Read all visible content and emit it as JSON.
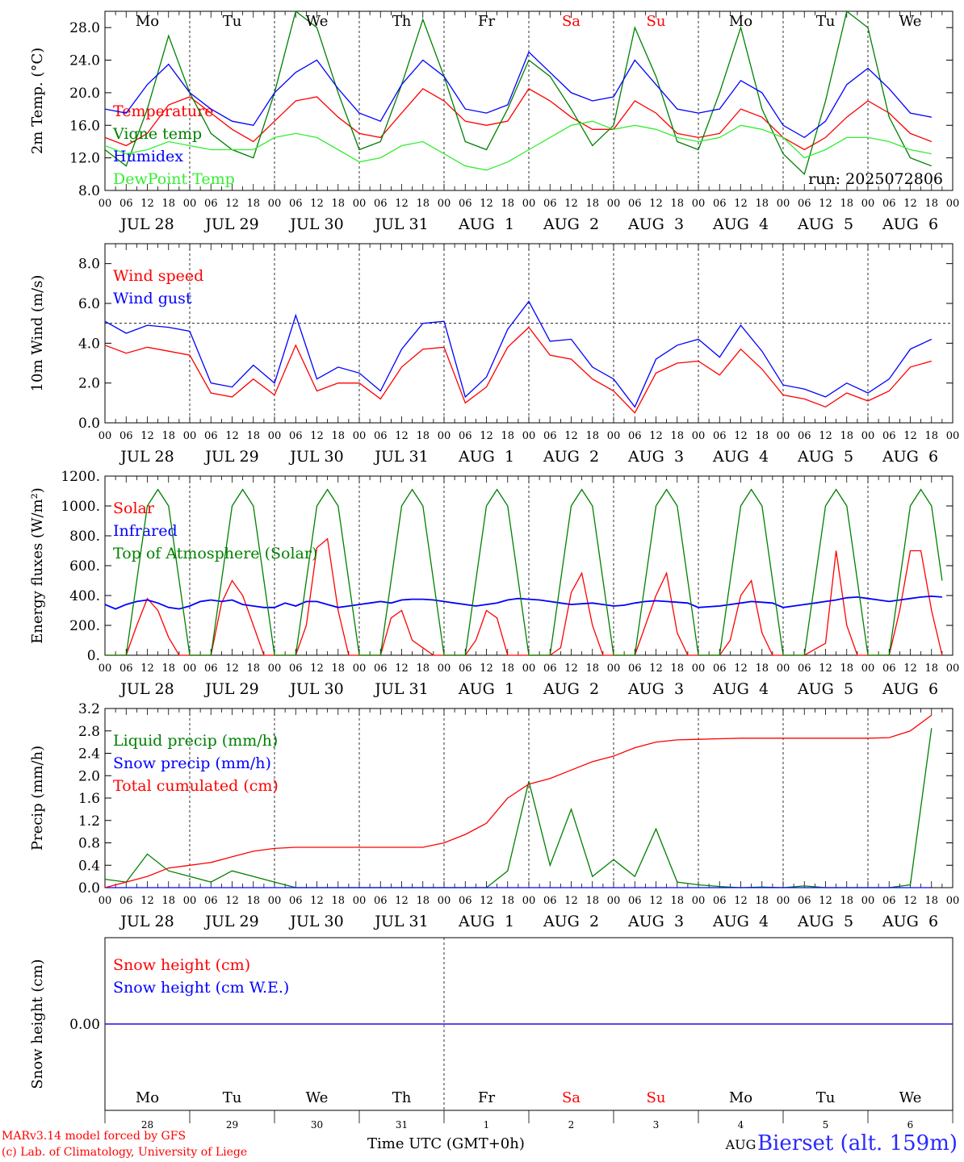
{
  "chart_data": [
    {
      "type": "line",
      "ylabel": "2m Temp. (°C)",
      "ylim": [
        8,
        30
      ],
      "yticks": [
        "8.0",
        "12.0",
        "16.0",
        "20.0",
        "24.0",
        "28.0"
      ],
      "run_label": "run: 2025072806",
      "x_hours": [
        0,
        6,
        12,
        18,
        24,
        30,
        36,
        42,
        48,
        54,
        60,
        66,
        72,
        78,
        84,
        90,
        96,
        102,
        108,
        114,
        120,
        126,
        132,
        138,
        144,
        150,
        156,
        162,
        168,
        174,
        180,
        186,
        192,
        198,
        204,
        210,
        216,
        222,
        228,
        234
      ],
      "series": [
        {
          "name": "Temperature",
          "color": "#ff0000",
          "values": [
            14.5,
            13.5,
            15,
            18.5,
            19.5,
            17.5,
            15.5,
            14,
            16.5,
            19,
            19.5,
            17,
            15,
            14.5,
            17.5,
            20.5,
            19,
            16.5,
            16,
            16.5,
            20.5,
            19,
            17,
            15.5,
            15.5,
            19,
            17.5,
            15,
            14.5,
            15,
            18,
            17,
            14.5,
            13,
            14.5,
            17,
            19,
            17.5,
            15,
            14
          ]
        },
        {
          "name": "Vigne temp",
          "color": "#008000",
          "values": [
            13,
            11,
            18,
            27,
            20,
            15,
            13,
            12,
            20,
            30,
            28,
            20,
            13,
            14,
            21,
            29,
            22,
            14,
            13,
            18,
            24,
            22,
            18,
            13.5,
            16,
            28,
            22,
            14,
            13,
            20,
            28,
            18,
            12.5,
            10,
            19,
            31,
            28,
            17,
            12,
            11
          ]
        },
        {
          "name": "Humidex",
          "color": "#0000ff",
          "values": [
            18,
            17.5,
            21,
            23.5,
            20,
            18,
            16.5,
            16,
            20,
            22.5,
            24,
            20.5,
            17.5,
            16.5,
            21,
            24,
            22,
            18,
            17.5,
            18.5,
            25,
            22.5,
            20,
            19,
            19.5,
            24,
            21,
            18,
            17.5,
            18,
            21.5,
            20,
            16,
            14.5,
            16.5,
            21,
            23,
            20.5,
            17.5,
            17
          ]
        },
        {
          "name": "DewPoint Temp",
          "color": "#33ee33",
          "values": [
            13.5,
            12.5,
            13,
            14,
            13.5,
            13,
            13,
            13,
            14.5,
            15,
            14.5,
            13,
            11.5,
            12,
            13.5,
            14,
            12.5,
            11,
            10.5,
            11.5,
            13,
            14.5,
            16,
            16.5,
            15.5,
            16,
            15.5,
            14.5,
            14,
            14.5,
            16,
            15.5,
            14.5,
            12,
            13,
            14.5,
            14.5,
            14,
            13,
            12.5
          ]
        }
      ]
    },
    {
      "type": "line",
      "ylabel": "10m Wind (m/s)",
      "ylim": [
        0,
        9
      ],
      "yticks": [
        "0.0",
        "2.0",
        "4.0",
        "6.0",
        "8.0"
      ],
      "x_hours": [
        0,
        6,
        12,
        18,
        24,
        30,
        36,
        42,
        48,
        54,
        60,
        66,
        72,
        78,
        84,
        90,
        96,
        102,
        108,
        114,
        120,
        126,
        132,
        138,
        144,
        150,
        156,
        162,
        168,
        174,
        180,
        186,
        192,
        198,
        204,
        210,
        216,
        222,
        228,
        234
      ],
      "series": [
        {
          "name": "Wind speed",
          "color": "#ff0000",
          "values": [
            3.9,
            3.5,
            3.8,
            3.6,
            3.4,
            1.5,
            1.3,
            2.2,
            1.4,
            3.9,
            1.6,
            2,
            2,
            1.2,
            2.8,
            3.7,
            3.8,
            1,
            1.8,
            3.8,
            4.8,
            3.4,
            3.2,
            2.2,
            1.6,
            0.5,
            2.5,
            3,
            3.1,
            2.4,
            3.7,
            2.7,
            1.4,
            1.2,
            0.8,
            1.5,
            1.1,
            1.6,
            2.8,
            3.1
          ]
        },
        {
          "name": "Wind gust",
          "color": "#0000ff",
          "values": [
            5.1,
            4.5,
            4.9,
            4.8,
            4.6,
            2,
            1.8,
            2.9,
            2,
            5.4,
            2.2,
            2.8,
            2.5,
            1.6,
            3.7,
            5,
            5.1,
            1.3,
            2.3,
            4.7,
            6.1,
            4.1,
            4.2,
            2.8,
            2.2,
            0.8,
            3.2,
            3.9,
            4.2,
            3.3,
            4.9,
            3.6,
            1.9,
            1.7,
            1.3,
            2,
            1.5,
            2.2,
            3.7,
            4.2
          ]
        }
      ],
      "reference_line": 5
    },
    {
      "type": "line",
      "ylabel": "Energy fluxes (W/m²)",
      "ylim": [
        0,
        1200
      ],
      "yticks": [
        "0.",
        "200.",
        "400.",
        "600.",
        "800.",
        "1000.",
        "1200."
      ],
      "x_hours": [
        0,
        3,
        6,
        9,
        12,
        15,
        18,
        21,
        24,
        27,
        30,
        33,
        36,
        39,
        42,
        45,
        48,
        51,
        54,
        57,
        60,
        63,
        66,
        69,
        72,
        75,
        78,
        81,
        84,
        87,
        90,
        93,
        96,
        99,
        102,
        105,
        108,
        111,
        114,
        117,
        120,
        123,
        126,
        129,
        132,
        135,
        138,
        141,
        144,
        147,
        150,
        153,
        156,
        159,
        162,
        165,
        168,
        171,
        174,
        177,
        180,
        183,
        186,
        189,
        192,
        195,
        198,
        201,
        204,
        207,
        210,
        213,
        216,
        219,
        222,
        225,
        228,
        231,
        234,
        237
      ],
      "series": [
        {
          "name": "Solar",
          "color": "#ff0000",
          "values": [
            0,
            0,
            0,
            200,
            380,
            300,
            120,
            0,
            0,
            0,
            0,
            350,
            500,
            400,
            200,
            0,
            0,
            0,
            0,
            200,
            720,
            780,
            300,
            0,
            0,
            0,
            0,
            250,
            300,
            100,
            50,
            0,
            0,
            0,
            0,
            100,
            300,
            250,
            0,
            0,
            0,
            0,
            0,
            50,
            420,
            550,
            200,
            0,
            0,
            0,
            0,
            200,
            400,
            550,
            150,
            0,
            0,
            0,
            0,
            100,
            400,
            500,
            150,
            0,
            0,
            0,
            0,
            40,
            80,
            700,
            200,
            0,
            0,
            0,
            0,
            300,
            700,
            700,
            300,
            0
          ]
        },
        {
          "name": "Infrared",
          "color": "#0000ff",
          "values": [
            340,
            310,
            340,
            360,
            370,
            350,
            320,
            310,
            330,
            360,
            370,
            360,
            370,
            340,
            330,
            320,
            320,
            350,
            330,
            360,
            360,
            340,
            320,
            330,
            340,
            350,
            360,
            350,
            370,
            375,
            375,
            370,
            360,
            350,
            340,
            330,
            340,
            350,
            370,
            380,
            375,
            370,
            360,
            350,
            340,
            345,
            350,
            340,
            330,
            335,
            350,
            360,
            365,
            360,
            355,
            350,
            320,
            325,
            330,
            340,
            350,
            360,
            355,
            350,
            320,
            330,
            340,
            350,
            360,
            370,
            385,
            390,
            380,
            370,
            360,
            370,
            380,
            390,
            395,
            390
          ]
        },
        {
          "name": "Top of Atmosphere (Solar)",
          "color": "#008000",
          "values": [
            0,
            0,
            0,
            500,
            1000,
            1110,
            1000,
            500,
            0,
            0,
            0,
            500,
            1000,
            1110,
            1000,
            500,
            0,
            0,
            0,
            500,
            1000,
            1110,
            1000,
            500,
            0,
            0,
            0,
            500,
            1000,
            1110,
            1000,
            500,
            0,
            0,
            0,
            500,
            1000,
            1110,
            1000,
            500,
            0,
            0,
            0,
            500,
            1000,
            1110,
            1000,
            500,
            0,
            0,
            0,
            500,
            1000,
            1110,
            1000,
            500,
            0,
            0,
            0,
            500,
            1000,
            1110,
            1000,
            500,
            0,
            0,
            0,
            500,
            1000,
            1110,
            1000,
            500,
            0,
            0,
            0,
            500,
            1000,
            1110,
            1000,
            500
          ]
        }
      ]
    },
    {
      "type": "line",
      "ylabel": "Precip (mm/h)",
      "ylim": [
        0,
        3.2
      ],
      "yticks": [
        "0.0",
        "0.4",
        "0.8",
        "1.2",
        "1.6",
        "2.0",
        "2.4",
        "2.8",
        "3.2"
      ],
      "x_hours": [
        0,
        6,
        12,
        18,
        24,
        30,
        36,
        42,
        48,
        54,
        60,
        66,
        72,
        78,
        84,
        90,
        96,
        102,
        108,
        114,
        120,
        126,
        132,
        138,
        144,
        150,
        156,
        162,
        168,
        174,
        180,
        186,
        192,
        198,
        204,
        210,
        216,
        222,
        228,
        234
      ],
      "series": [
        {
          "name": "Liquid precip (mm/h)",
          "color": "#008000",
          "values": [
            0.15,
            0.1,
            0.6,
            0.3,
            0.2,
            0.1,
            0.3,
            0.2,
            0.1,
            0,
            0,
            0,
            0,
            0,
            0,
            0,
            0,
            0,
            0,
            0.3,
            1.9,
            0.4,
            1.4,
            0.2,
            0.5,
            0.2,
            1.05,
            0.1,
            0.05,
            0.02,
            0,
            0.01,
            0,
            0.03,
            0,
            0,
            0,
            0,
            0.05,
            2.85
          ]
        },
        {
          "name": "Snow precip (mm/h)",
          "color": "#0000ff",
          "values": [
            0,
            0,
            0,
            0,
            0,
            0,
            0,
            0,
            0,
            0,
            0,
            0,
            0,
            0,
            0,
            0,
            0,
            0,
            0,
            0,
            0,
            0,
            0,
            0,
            0,
            0,
            0,
            0,
            0,
            0,
            0,
            0,
            0,
            0,
            0,
            0,
            0,
            0,
            0,
            0
          ]
        },
        {
          "name": "Total cumulated (cm)",
          "color": "#ff0000",
          "values": [
            0,
            0.1,
            0.2,
            0.35,
            0.4,
            0.45,
            0.55,
            0.65,
            0.7,
            0.72,
            0.72,
            0.72,
            0.72,
            0.72,
            0.72,
            0.72,
            0.8,
            0.95,
            1.15,
            1.6,
            1.85,
            1.95,
            2.1,
            2.25,
            2.35,
            2.5,
            2.6,
            2.64,
            2.65,
            2.66,
            2.67,
            2.67,
            2.67,
            2.67,
            2.67,
            2.67,
            2.67,
            2.68,
            2.8,
            3.08
          ]
        }
      ]
    },
    {
      "type": "line",
      "ylabel": "Snow height (cm)",
      "ylim": [
        -1,
        1
      ],
      "yticks": [
        "0.00"
      ],
      "x_hours": [
        0,
        240
      ],
      "series": [
        {
          "name": "Snow height (cm)",
          "color": "#ff0000",
          "values": [
            0,
            0
          ]
        },
        {
          "name": "Snow height (cm W.E.)",
          "color": "#0000ff",
          "values": [
            0,
            0
          ]
        }
      ]
    }
  ],
  "days": [
    {
      "dow": "Mo",
      "date": "JUL 28",
      "num": "28",
      "color": "#000000"
    },
    {
      "dow": "Tu",
      "date": "JUL 29",
      "num": "29",
      "color": "#000000"
    },
    {
      "dow": "We",
      "date": "JUL 30",
      "num": "30",
      "color": "#000000"
    },
    {
      "dow": "Th",
      "date": "JUL 31",
      "num": "31",
      "color": "#000000"
    },
    {
      "dow": "Fr",
      "date": "AUG  1",
      "num": "1",
      "color": "#000000"
    },
    {
      "dow": "Sa",
      "date": "AUG  2",
      "num": "2",
      "color": "#ff0000"
    },
    {
      "dow": "Su",
      "date": "AUG  3",
      "num": "3",
      "color": "#ff0000"
    },
    {
      "dow": "Mo",
      "date": "AUG  4",
      "num": "4",
      "color": "#000000"
    },
    {
      "dow": "Tu",
      "date": "AUG  5",
      "num": "5",
      "color": "#000000"
    },
    {
      "dow": "We",
      "date": "AUG  6",
      "num": "6",
      "color": "#000000"
    }
  ],
  "hour_ticks": [
    "00",
    "06",
    "12",
    "18"
  ],
  "bottom_month": "AUG",
  "footer": {
    "credit_line1": "MARv3.14 model forced by GFS",
    "credit_line2": "(c) Lab. of Climatology, University of Liege",
    "xaxis_label": "Time UTC (GMT+0h)",
    "station": "Bierset (alt. 159m)"
  }
}
